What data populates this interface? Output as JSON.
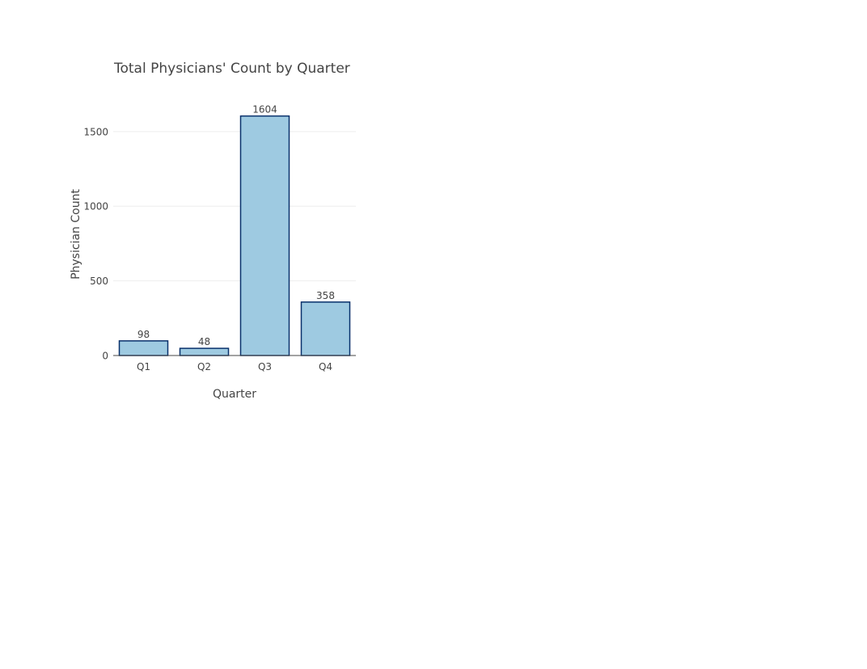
{
  "chart_data": {
    "type": "bar",
    "title": "Total Physicians' Count by Quarter",
    "xlabel": "Quarter",
    "ylabel": "Physician Count",
    "categories": [
      "Q1",
      "Q2",
      "Q3",
      "Q4"
    ],
    "values": [
      98,
      48,
      1604,
      358
    ],
    "value_labels": [
      "98",
      "48",
      "1604",
      "358"
    ],
    "yticks": [
      0,
      500,
      1000,
      1500
    ],
    "ytick_labels": [
      "0",
      "500",
      "1000",
      "1500"
    ],
    "ylim": [
      0,
      1688.4
    ],
    "grid": true,
    "legend": "none",
    "bar_fill": "#9ecae1",
    "bar_stroke": "#08306b",
    "gridline_color": "#eeeeee",
    "axis_line_color": "#444444",
    "text_color": "#444444"
  }
}
